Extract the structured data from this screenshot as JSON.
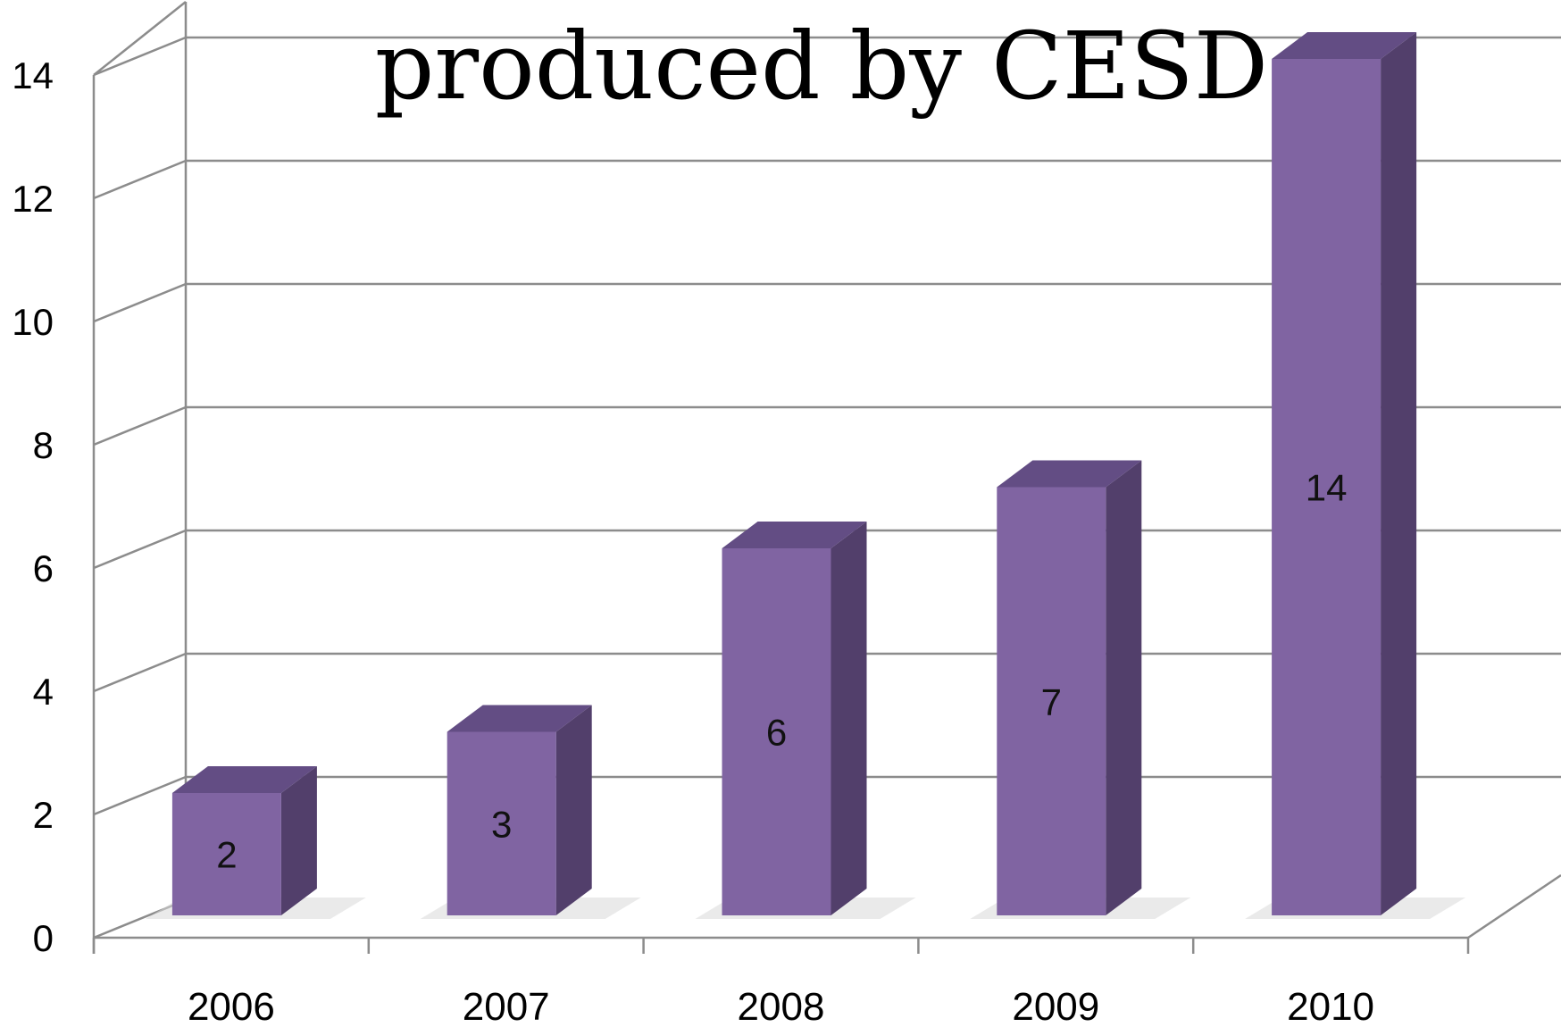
{
  "chart_data": {
    "type": "bar",
    "title": "produced by CESD",
    "xlabel": "",
    "ylabel": "",
    "categories": [
      "2006",
      "2007",
      "2008",
      "2009",
      "2010"
    ],
    "values": [
      2,
      3,
      6,
      7,
      14
    ],
    "ylim": [
      0,
      14
    ],
    "yticks": [
      "0",
      "2",
      "4",
      "6",
      "8",
      "10",
      "12",
      "14"
    ],
    "grid": true,
    "legend": "none",
    "data_labels": [
      "2",
      "3",
      "6",
      "7",
      "14"
    ],
    "bar_color": "#8064a2"
  }
}
